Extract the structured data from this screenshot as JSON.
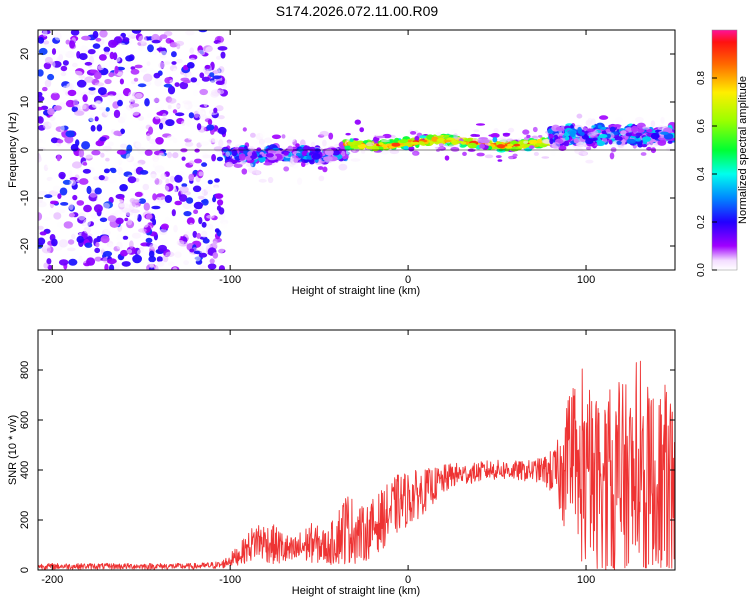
{
  "title": "S174.2026.072.11.00.R09",
  "chart_data": [
    {
      "type": "heatmap",
      "xlabel": "Height of straight line (km)",
      "ylabel": "Frequency (Hz)",
      "xlim": [
        -208,
        150
      ],
      "ylim": [
        -25,
        25
      ],
      "xticks": [
        -200,
        -100,
        0,
        100
      ],
      "yticks": [
        -20,
        -10,
        0,
        10,
        20
      ],
      "colorbar": {
        "label": "Normalized spectral amplitude",
        "range": [
          0,
          1
        ],
        "ticks": [
          "0.0",
          "0.2",
          "0.4",
          "0.6",
          "0.8"
        ]
      },
      "segments": [
        {
          "x_from": -208,
          "x_to": -103,
          "pattern": "broadband noise across all frequencies",
          "freq_center_hz": 0,
          "max_amplitude": 0.25
        },
        {
          "x_from": -103,
          "x_to": -35,
          "pattern": "band near 0 Hz",
          "freq_center_hz": -1,
          "max_amplitude": 0.35
        },
        {
          "x_from": -35,
          "x_to": 80,
          "pattern": "narrow strong band",
          "freq_center_hz": 1.5,
          "max_amplitude": 0.95
        },
        {
          "x_from": 80,
          "x_to": 150,
          "pattern": "band with scattered spread",
          "freq_center_hz": 3,
          "max_amplitude": 0.4
        }
      ]
    },
    {
      "type": "line",
      "xlabel": "Height of straight line (km)",
      "ylabel": "SNR (10 * v/v)",
      "xlim": [
        -208,
        150
      ],
      "ylim": [
        0,
        960
      ],
      "xticks": [
        -200,
        -100,
        0,
        100
      ],
      "yticks": [
        0,
        200,
        400,
        600,
        800
      ],
      "series": [
        {
          "name": "SNR",
          "color": "#ee3333",
          "x": [
            -208,
            -180,
            -150,
            -120,
            -105,
            -95,
            -85,
            -75,
            -65,
            -55,
            -45,
            -35,
            -25,
            -15,
            -5,
            5,
            15,
            25,
            35,
            45,
            55,
            65,
            75,
            82,
            90,
            100,
            110,
            120,
            130,
            140,
            150
          ],
          "y": [
            15,
            15,
            15,
            15,
            20,
            60,
            120,
            100,
            70,
            110,
            90,
            170,
            140,
            200,
            270,
            300,
            340,
            380,
            385,
            400,
            400,
            395,
            400,
            390,
            360,
            340,
            340,
            330,
            320,
            320,
            320
          ],
          "noise_amplitude": [
            12,
            12,
            12,
            12,
            15,
            40,
            80,
            80,
            60,
            80,
            70,
            150,
            110,
            120,
            120,
            100,
            70,
            50,
            40,
            40,
            40,
            40,
            50,
            100,
            250,
            350,
            380,
            420,
            420,
            420,
            420
          ]
        }
      ]
    }
  ]
}
